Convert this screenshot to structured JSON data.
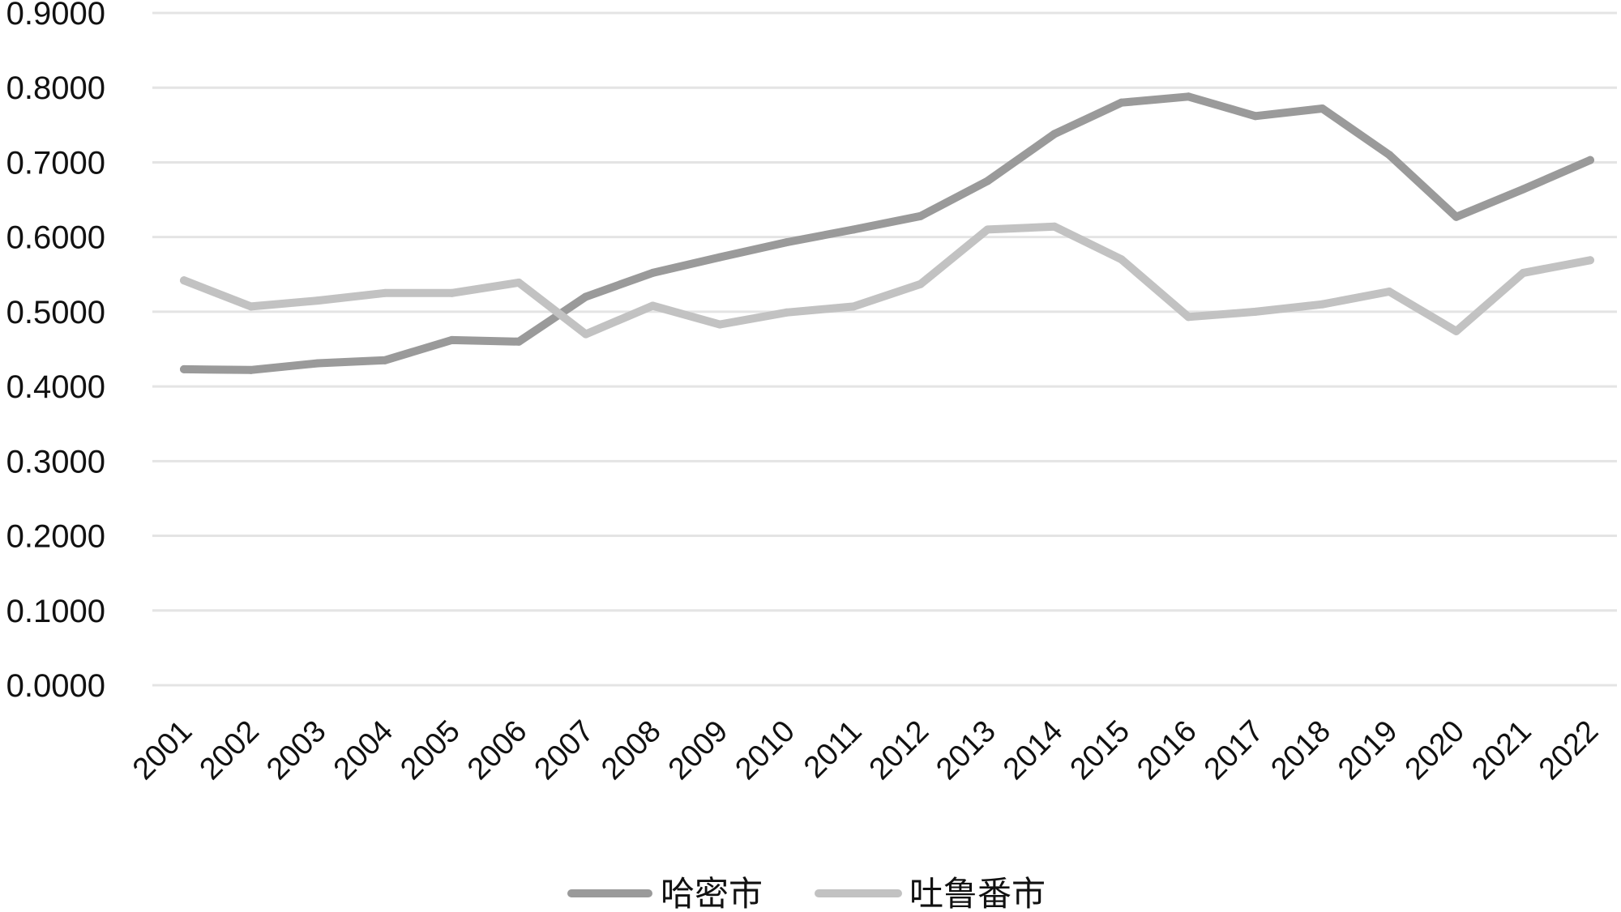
{
  "chart_data": {
    "type": "line",
    "title": "",
    "xlabel": "",
    "ylabel": "",
    "categories": [
      "2001",
      "2002",
      "2003",
      "2004",
      "2005",
      "2006",
      "2007",
      "2008",
      "2009",
      "2010",
      "2011",
      "2012",
      "2013",
      "2014",
      "2015",
      "2016",
      "2017",
      "2018",
      "2019",
      "2020",
      "2021",
      "2022"
    ],
    "y_ticks": [
      "0.0000",
      "0.1000",
      "0.2000",
      "0.3000",
      "0.4000",
      "0.5000",
      "0.6000",
      "0.7000",
      "0.8000",
      "0.9000"
    ],
    "ylim": [
      0,
      0.9
    ],
    "grid": true,
    "legend_position": "bottom",
    "series": [
      {
        "name": "哈密市",
        "color": "#9a9a9a",
        "values": [
          0.423,
          0.422,
          0.431,
          0.435,
          0.462,
          0.46,
          0.52,
          0.552,
          0.573,
          0.593,
          0.61,
          0.628,
          0.675,
          0.738,
          0.78,
          0.788,
          0.762,
          0.772,
          0.71,
          0.627,
          0.664,
          0.703
        ]
      },
      {
        "name": "吐鲁番市",
        "color": "#c2c2c2",
        "values": [
          0.542,
          0.507,
          0.515,
          0.525,
          0.525,
          0.539,
          0.47,
          0.508,
          0.483,
          0.499,
          0.507,
          0.537,
          0.61,
          0.614,
          0.57,
          0.493,
          0.5,
          0.51,
          0.527,
          0.474,
          0.552,
          0.569
        ]
      }
    ]
  }
}
